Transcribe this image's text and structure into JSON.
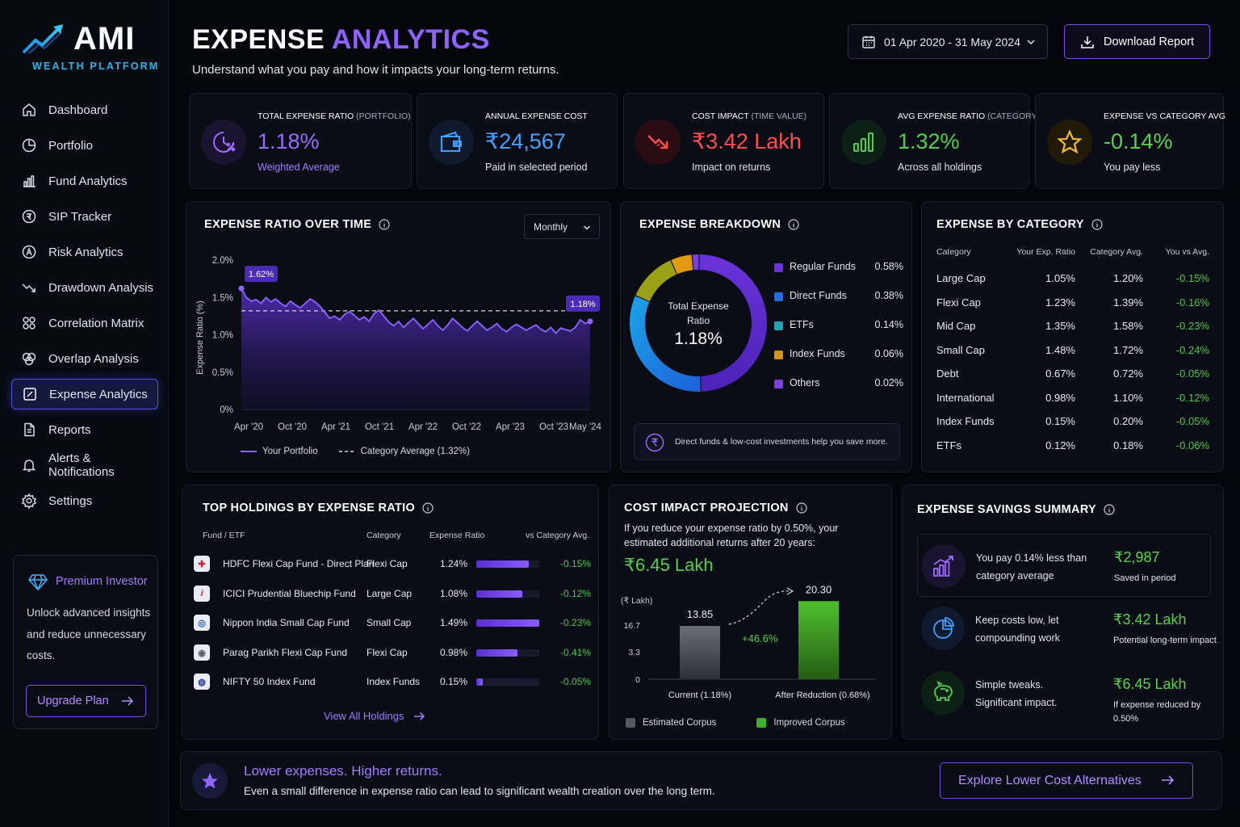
{
  "brand": {
    "name": "AMI",
    "tagline": "WEALTH PLATFORM"
  },
  "nav": [
    {
      "label": "Dashboard",
      "icon": "home-icon"
    },
    {
      "label": "Portfolio",
      "icon": "pie-icon"
    },
    {
      "label": "Fund Analytics",
      "icon": "bar-chart-icon"
    },
    {
      "label": "SIP Tracker",
      "icon": "sip-icon"
    },
    {
      "label": "Risk Analytics",
      "icon": "risk-icon"
    },
    {
      "label": "Drawdown Analysis",
      "icon": "trend-down-icon"
    },
    {
      "label": "Correlation Matrix",
      "icon": "grid-circles-icon"
    },
    {
      "label": "Overlap Analysis",
      "icon": "overlap-icon"
    },
    {
      "label": "Expense Analytics",
      "icon": "expense-icon",
      "active": true
    },
    {
      "label": "Reports",
      "icon": "document-icon"
    },
    {
      "label": "Alerts & Notifications",
      "icon": "bell-icon"
    },
    {
      "label": "Settings",
      "icon": "gear-icon"
    }
  ],
  "premium": {
    "title": "Premium Investor",
    "body": "Unlock advanced insights and reduce unnecessary costs.",
    "button": "Upgrade Plan"
  },
  "header": {
    "title_main": "EXPENSE",
    "title_accent": "ANALYTICS",
    "subtitle": "Understand what you pay and how it impacts your long-term returns.",
    "date_range": "01 Apr 2020 - 31 May 2024",
    "download": "Download Report"
  },
  "kpis": [
    {
      "label": "TOTAL EXPENSE RATIO",
      "paren": "(PORTFOLIO)",
      "value": "1.18%",
      "sub": "Weighted Average",
      "color": "#9b6bff",
      "sub_color": "#a57cff",
      "icon": "clock-percent-icon"
    },
    {
      "label": "ANNUAL EXPENSE COST",
      "paren": "",
      "value": "₹24,567",
      "sub": "Paid in selected period",
      "color": "#3fa2ff",
      "sub_color": "#e2e4ee",
      "icon": "wallet-icon"
    },
    {
      "label": "COST IMPACT",
      "paren": "(TIME VALUE)",
      "value": "₹3.42 Lakh",
      "sub": "Impact on returns",
      "color": "#ff4d4d",
      "sub_color": "#e2e4ee",
      "icon": "trend-down-icon"
    },
    {
      "label": "AVG EXPENSE RATIO",
      "paren": "(CATEGORY)",
      "value": "1.32%",
      "sub": "Across all holdings",
      "color": "#4fd04a",
      "sub_color": "#e2e4ee",
      "icon": "bar-chart-icon"
    },
    {
      "label": "EXPENSE VS CATEGORY AVG",
      "paren": "",
      "value": "-0.14%",
      "sub": "You pay less",
      "color": "#5ad34c",
      "sub_color": "#e2e4ee",
      "icon": "star-icon"
    }
  ],
  "ratio_chart": {
    "title": "EXPENSE RATIO OVER TIME",
    "period": "Monthly",
    "start_label": "1.62%",
    "end_label": "1.18%",
    "legend_portfolio": "Your Portfolio",
    "legend_category": "Category Average (1.32%)"
  },
  "chart_data": {
    "type": "area",
    "ylabel": "Expense Ratio (%)",
    "ylim": [
      0,
      2.0
    ],
    "yticks": [
      "2.0%",
      "1.5%",
      "1.0%",
      "0.5%",
      "0%"
    ],
    "yticks_values": [
      2.0,
      1.5,
      1.0,
      0.5,
      0
    ],
    "x_ticks": [
      "Apr '20",
      "Oct '20",
      "Apr '21",
      "Oct '21",
      "Apr '22",
      "Oct '22",
      "Apr '23",
      "Oct '23",
      "May '24"
    ],
    "category_average": 1.32,
    "series": [
      {
        "name": "Your Portfolio",
        "values": [
          1.62,
          1.5,
          1.45,
          1.47,
          1.42,
          1.5,
          1.44,
          1.48,
          1.42,
          1.38,
          1.45,
          1.4,
          1.36,
          1.42,
          1.48,
          1.44,
          1.38,
          1.3,
          1.22,
          1.25,
          1.2,
          1.27,
          1.31,
          1.26,
          1.2,
          1.24,
          1.18,
          1.28,
          1.33,
          1.25,
          1.17,
          1.12,
          1.18,
          1.1,
          1.16,
          1.22,
          1.15,
          1.08,
          1.14,
          1.2,
          1.12,
          1.06,
          1.13,
          1.22,
          1.16,
          1.1,
          1.05,
          1.12,
          1.18,
          1.12,
          1.06,
          1.1,
          1.15,
          1.08,
          1.04,
          1.1,
          1.14,
          1.1,
          1.06,
          1.1,
          1.13,
          1.07,
          1.04,
          1.1,
          1.02,
          1.09,
          1.07,
          1.05,
          1.1,
          1.2,
          1.15,
          1.18
        ]
      }
    ]
  },
  "breakdown": {
    "title": "EXPENSE BREAKDOWN",
    "center_label": "Total Expense Ratio",
    "center_value": "1.18%",
    "items": [
      {
        "label": "Regular Funds",
        "value": "0.58%",
        "share": 0.58,
        "color": "#6a33d9"
      },
      {
        "label": "Direct Funds",
        "value": "0.38%",
        "share": 0.38,
        "color": "#1e6fe0"
      },
      {
        "label": "ETFs",
        "value": "0.14%",
        "share": 0.14,
        "color": "#1fa7b8"
      },
      {
        "label": "Index Funds",
        "value": "0.06%",
        "share": 0.06,
        "color": "#d89316"
      },
      {
        "label": "Others",
        "value": "0.02%",
        "share": 0.02,
        "color": "#7a3fe0"
      }
    ],
    "tip": "Direct funds & low-cost investments help you save more."
  },
  "category_table": {
    "title": "EXPENSE BY CATEGORY",
    "headers": [
      "Category",
      "Your Exp. Ratio",
      "Category Avg.",
      "You vs Avg."
    ],
    "rows": [
      [
        "Large Cap",
        "1.05%",
        "1.20%",
        "-0.15%"
      ],
      [
        "Flexi Cap",
        "1.23%",
        "1.39%",
        "-0.16%"
      ],
      [
        "Mid Cap",
        "1.35%",
        "1.58%",
        "-0.23%"
      ],
      [
        "Small Cap",
        "1.48%",
        "1.72%",
        "-0.24%"
      ],
      [
        "Debt",
        "0.67%",
        "0.72%",
        "-0.05%"
      ],
      [
        "International",
        "0.98%",
        "1.10%",
        "-0.12%"
      ],
      [
        "Index Funds",
        "0.15%",
        "0.20%",
        "-0.05%"
      ],
      [
        "ETFs",
        "0.12%",
        "0.18%",
        "-0.06%"
      ]
    ]
  },
  "holdings": {
    "title": "TOP HOLDINGS BY EXPENSE RATIO",
    "headers": [
      "Fund / ETF",
      "Category",
      "Expense Ratio",
      "vs Category Avg."
    ],
    "rows": [
      {
        "fund": "HDFC Flexi Cap Fund - Direct Plan",
        "category": "Flexi Cap",
        "ratio": "1.24%",
        "ratio_value": 1.24,
        "vs": "-0.15%",
        "logo_color": "#c8203a",
        "logo": "✚"
      },
      {
        "fund": "ICICI Prudential Bluechip Fund",
        "category": "Large Cap",
        "ratio": "1.08%",
        "ratio_value": 1.08,
        "vs": "-0.12%",
        "logo_color": "#d71f26",
        "logo": "i"
      },
      {
        "fund": "Nippon India Small Cap Fund",
        "category": "Small Cap",
        "ratio": "1.49%",
        "ratio_value": 1.49,
        "vs": "-0.23%",
        "logo_color": "#1c5fb4",
        "logo": "◎"
      },
      {
        "fund": "Parag Parikh Flexi Cap Fund",
        "category": "Flexi Cap",
        "ratio": "0.98%",
        "ratio_value": 0.98,
        "vs": "-0.41%",
        "logo_color": "#5a5f6a",
        "logo": "◉"
      },
      {
        "fund": "NIFTY 50 Index Fund",
        "category": "Index Funds",
        "ratio": "0.15%",
        "ratio_value": 0.15,
        "vs": "-0.05%",
        "logo_color": "#2a3b8c",
        "logo": "◍"
      }
    ],
    "view_all": "View All Holdings"
  },
  "projection": {
    "title": "COST IMPACT PROJECTION",
    "text": "If you reduce your expense ratio by 0.50%, your estimated additional returns after 20 years:",
    "value": "₹6.45 Lakh",
    "unit": "(₹ Lakh)",
    "y_ticks": [
      "16.7",
      "3.3",
      "0"
    ],
    "bars": [
      {
        "label": "Current (1.18%)",
        "value": 13.85,
        "value_label": "13.85"
      },
      {
        "label": "After Reduction (0.68%)",
        "value": 20.3,
        "value_label": "20.30"
      }
    ],
    "delta": "+46.6%",
    "legend_estimated": "Estimated Corpus",
    "legend_improved": "Improved Corpus"
  },
  "savings": {
    "title": "EXPENSE SAVINGS SUMMARY",
    "items": [
      {
        "text": "You pay 0.14% less than category average",
        "value": "₹2,987",
        "note": "Saved in period",
        "icon": "growth-chart-icon"
      },
      {
        "text": "Keep costs low, let compounding work",
        "value": "₹3.42 Lakh",
        "note": "Potential long-term impact",
        "icon": "pie-chart-icon"
      },
      {
        "text": "Simple tweaks. Significant impact.",
        "value": "₹6.45 Lakh",
        "note": "If expense reduced by 0.50%",
        "icon": "piggy-bank-icon"
      }
    ]
  },
  "footer": {
    "title": "Lower expenses. Higher returns.",
    "subtitle": "Even a small difference in expense ratio can lead to significant wealth creation over the long term.",
    "button": "Explore Lower Cost Alternatives"
  }
}
